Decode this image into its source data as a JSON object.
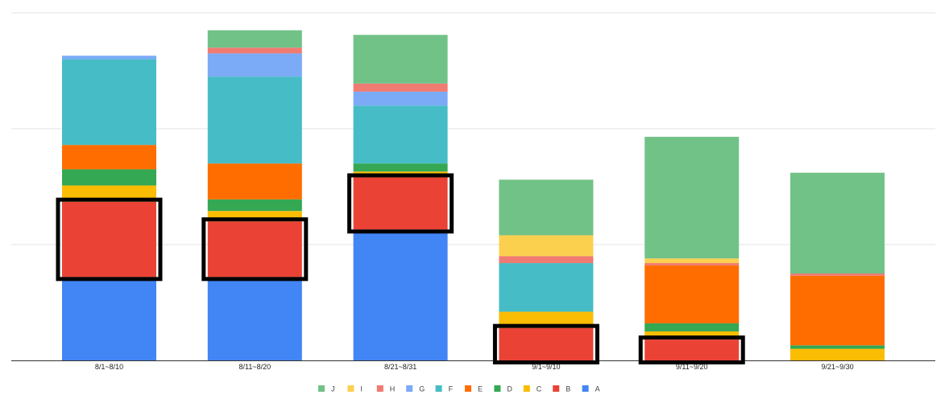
{
  "chart_data": {
    "type": "bar",
    "stacked": true,
    "title": "",
    "xlabel": "",
    "ylabel": "",
    "ylim": [
      0,
      300
    ],
    "gridlines": [
      0,
      100,
      200,
      300
    ],
    "categories": [
      "8/1~8/10",
      "8/11~8/20",
      "8/21~8/31",
      "9/1~9/10",
      "9/11~9/20",
      "9/21~9/30"
    ],
    "series": [
      {
        "name": "A",
        "color": "#4285f4",
        "values": [
          72,
          72,
          113,
          0,
          0,
          0
        ]
      },
      {
        "name": "B",
        "color": "#ea4335",
        "values": [
          65,
          48,
          45,
          28,
          18,
          0
        ]
      },
      {
        "name": "C",
        "color": "#fbbc04",
        "values": [
          14,
          9,
          5,
          14,
          7,
          10
        ]
      },
      {
        "name": "D",
        "color": "#34a853",
        "values": [
          14,
          10,
          7,
          0,
          7,
          3
        ]
      },
      {
        "name": "E",
        "color": "#ff6d01",
        "values": [
          21,
          31,
          0,
          0,
          50,
          60
        ]
      },
      {
        "name": "F",
        "color": "#46bdc6",
        "values": [
          74,
          75,
          50,
          42,
          0,
          0
        ]
      },
      {
        "name": "G",
        "color": "#7baaf7",
        "values": [
          3,
          20,
          12,
          0,
          0,
          0
        ]
      },
      {
        "name": "H",
        "color": "#f07b72",
        "values": [
          0,
          5,
          7,
          6,
          2,
          2
        ]
      },
      {
        "name": "I",
        "color": "#fcd04f",
        "values": [
          0,
          0,
          0,
          18,
          4,
          0
        ]
      },
      {
        "name": "J",
        "color": "#71c287",
        "values": [
          0,
          15,
          42,
          48,
          105,
          87
        ]
      }
    ],
    "highlighted": {
      "series": "B",
      "categories": [
        "8/1~8/10",
        "8/11~8/20",
        "8/21~8/31",
        "9/1~9/10",
        "9/11~9/20"
      ]
    },
    "legend": {
      "position": "bottom",
      "order": [
        "J",
        "I",
        "H",
        "G",
        "F",
        "E",
        "D",
        "C",
        "B",
        "A"
      ]
    }
  }
}
